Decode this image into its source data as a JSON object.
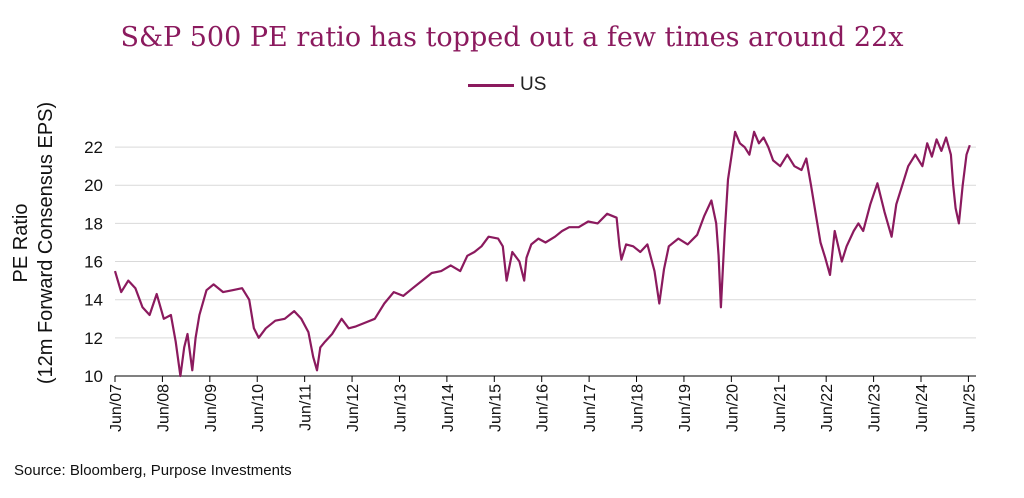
{
  "title": "S&P 500 PE ratio has topped out a few times around 22x",
  "source": "Source: Bloomberg, Purpose Investments",
  "colors": {
    "series": "#8b1a5e",
    "grid": "#d9d9d9",
    "axis": "#000000"
  },
  "chart_data": {
    "type": "line",
    "title": "S&P 500 PE ratio has topped out a few times around 22x",
    "ylabel_line1": "PE Ratio",
    "ylabel_line2": "(12m Forward Consensus EPS)",
    "xlabel": "",
    "ylim": [
      10,
      23
    ],
    "yticks": [
      10,
      12,
      14,
      16,
      18,
      20,
      22
    ],
    "xlim": [
      2007.42,
      2025.58
    ],
    "xticks": [
      {
        "label": "Jun/07",
        "x": 2007.42
      },
      {
        "label": "Jun/08",
        "x": 2008.42
      },
      {
        "label": "Jun/09",
        "x": 2009.42
      },
      {
        "label": "Jun/10",
        "x": 2010.42
      },
      {
        "label": "Jun/11",
        "x": 2011.42
      },
      {
        "label": "Jun/12",
        "x": 2012.42
      },
      {
        "label": "Jun/13",
        "x": 2013.42
      },
      {
        "label": "Jun/14",
        "x": 2014.42
      },
      {
        "label": "Jun/15",
        "x": 2015.42
      },
      {
        "label": "Jun/16",
        "x": 2016.42
      },
      {
        "label": "Jun/17",
        "x": 2017.42
      },
      {
        "label": "Jun/18",
        "x": 2018.42
      },
      {
        "label": "Jun/19",
        "x": 2019.42
      },
      {
        "label": "Jun/20",
        "x": 2020.42
      },
      {
        "label": "Jun/21",
        "x": 2021.42
      },
      {
        "label": "Jun/22",
        "x": 2022.42
      },
      {
        "label": "Jun/23",
        "x": 2023.42
      },
      {
        "label": "Jun/24",
        "x": 2024.42
      },
      {
        "label": "Jun/25",
        "x": 2025.42
      }
    ],
    "legend": "US",
    "legend_position": "top-center",
    "grid": true,
    "series": [
      {
        "name": "US",
        "x": [
          2007.42,
          2007.55,
          2007.7,
          2007.85,
          2008.0,
          2008.15,
          2008.3,
          2008.45,
          2008.6,
          2008.7,
          2008.8,
          2008.88,
          2008.95,
          2009.05,
          2009.12,
          2009.2,
          2009.35,
          2009.5,
          2009.7,
          2009.9,
          2010.1,
          2010.25,
          2010.35,
          2010.45,
          2010.6,
          2010.8,
          2011.0,
          2011.2,
          2011.35,
          2011.5,
          2011.6,
          2011.68,
          2011.75,
          2011.85,
          2012.0,
          2012.2,
          2012.35,
          2012.5,
          2012.7,
          2012.9,
          2013.1,
          2013.3,
          2013.5,
          2013.7,
          2013.9,
          2014.1,
          2014.3,
          2014.5,
          2014.7,
          2014.85,
          2015.0,
          2015.15,
          2015.3,
          2015.5,
          2015.6,
          2015.68,
          2015.8,
          2015.95,
          2016.05,
          2016.1,
          2016.2,
          2016.35,
          2016.5,
          2016.7,
          2016.85,
          2017.0,
          2017.2,
          2017.4,
          2017.6,
          2017.8,
          2018.0,
          2018.06,
          2018.1,
          2018.2,
          2018.35,
          2018.5,
          2018.65,
          2018.8,
          2018.9,
          2019.0,
          2019.1,
          2019.3,
          2019.5,
          2019.7,
          2019.85,
          2020.0,
          2020.1,
          2020.15,
          2020.2,
          2020.28,
          2020.35,
          2020.42,
          2020.5,
          2020.6,
          2020.7,
          2020.8,
          2020.9,
          2021.0,
          2021.1,
          2021.2,
          2021.3,
          2021.45,
          2021.6,
          2021.75,
          2021.9,
          2022.0,
          2022.1,
          2022.2,
          2022.3,
          2022.4,
          2022.5,
          2022.6,
          2022.75,
          2022.85,
          2023.0,
          2023.1,
          2023.2,
          2023.35,
          2023.5,
          2023.65,
          2023.8,
          2023.9,
          2024.0,
          2024.15,
          2024.3,
          2024.45,
          2024.55,
          2024.65,
          2024.75,
          2024.85,
          2024.95,
          2025.05,
          2025.1,
          2025.15,
          2025.22,
          2025.3,
          2025.38,
          2025.45
        ],
        "values": [
          15.5,
          14.4,
          15.0,
          14.6,
          13.6,
          13.2,
          14.3,
          13.0,
          13.2,
          11.8,
          10.0,
          11.5,
          12.2,
          10.3,
          12.0,
          13.2,
          14.5,
          14.8,
          14.4,
          14.5,
          14.6,
          14.0,
          12.5,
          12.0,
          12.5,
          12.9,
          13.0,
          13.4,
          13.0,
          12.3,
          11.0,
          10.3,
          11.5,
          11.8,
          12.2,
          13.0,
          12.5,
          12.6,
          12.8,
          13.0,
          13.8,
          14.4,
          14.2,
          14.6,
          15.0,
          15.4,
          15.5,
          15.8,
          15.5,
          16.3,
          16.5,
          16.8,
          17.3,
          17.2,
          16.8,
          15.0,
          16.5,
          16.0,
          15.0,
          16.2,
          16.9,
          17.2,
          17.0,
          17.3,
          17.6,
          17.8,
          17.8,
          18.1,
          18.0,
          18.5,
          18.3,
          16.8,
          16.1,
          16.9,
          16.8,
          16.5,
          16.9,
          15.5,
          13.8,
          15.6,
          16.8,
          17.2,
          16.9,
          17.4,
          18.4,
          19.2,
          18.0,
          16.3,
          13.6,
          17.5,
          20.3,
          21.5,
          22.8,
          22.2,
          22.0,
          21.6,
          22.8,
          22.2,
          22.5,
          22.0,
          21.3,
          21.0,
          21.6,
          21.0,
          20.8,
          21.4,
          20.0,
          18.5,
          17.0,
          16.2,
          15.3,
          17.6,
          16.0,
          16.8,
          17.6,
          18.0,
          17.6,
          19.0,
          20.1,
          18.6,
          17.3,
          19.0,
          19.8,
          21.0,
          21.6,
          21.0,
          22.2,
          21.5,
          22.4,
          21.8,
          22.5,
          21.6,
          20.0,
          18.8,
          18.0,
          20.0,
          21.6,
          22.1
        ]
      }
    ]
  }
}
